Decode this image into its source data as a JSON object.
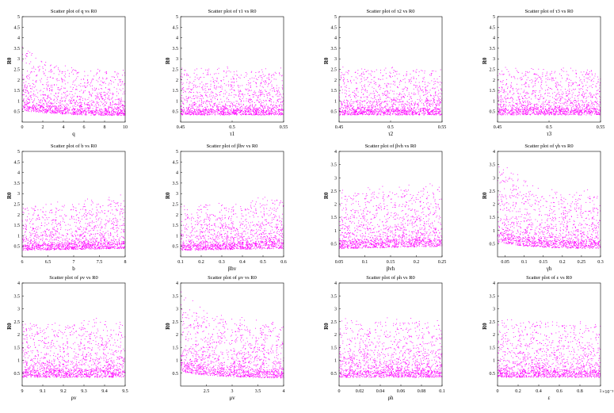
{
  "figure": {
    "point_color": "#ff00ff",
    "background": "#ffffff",
    "ylabel": "R0",
    "ylabel_sub": "0"
  },
  "chart_data": [
    {
      "type": "scatter",
      "title": "Scatter plot of q vs R0",
      "xlabel": "q",
      "xlim": [
        0,
        10
      ],
      "ylim": [
        0,
        5
      ],
      "xticks": [
        0,
        2,
        4,
        6,
        8,
        10
      ],
      "xtick_labels": [
        "0",
        "2",
        "4",
        "6",
        "8",
        "10"
      ],
      "yticks": [
        0.5,
        1,
        1.5,
        2,
        2.5,
        3,
        3.5,
        4,
        4.5,
        5
      ],
      "ytick_labels": [
        "0.5",
        "1",
        "1.5",
        "2",
        "2.5",
        "3",
        "3.5",
        "4",
        "4.5",
        "5"
      ],
      "trend": "decreasing",
      "n_points": 1500,
      "seed": 11
    },
    {
      "type": "scatter",
      "title": "Scatter plot of τ1 vs R0",
      "xlabel": "τ1",
      "xlim": [
        0.45,
        0.55
      ],
      "ylim": [
        0,
        5
      ],
      "xticks": [
        0.45,
        0.5,
        0.55
      ],
      "xtick_labels": [
        "0.45",
        "0.5",
        "0.55"
      ],
      "yticks": [
        0.5,
        1,
        1.5,
        2,
        2.5,
        3,
        3.5,
        4,
        4.5,
        5
      ],
      "ytick_labels": [
        "0.5",
        "1",
        "1.5",
        "2",
        "2.5",
        "3",
        "3.5",
        "4",
        "4.5",
        "5"
      ],
      "trend": "flat",
      "n_points": 1500,
      "seed": 12
    },
    {
      "type": "scatter",
      "title": "Scatter plot of τ2 vs R0",
      "xlabel": "τ2",
      "xlim": [
        0.45,
        0.55
      ],
      "ylim": [
        0,
        5
      ],
      "xticks": [
        0.45,
        0.5,
        0.55
      ],
      "xtick_labels": [
        "0.45",
        "0.5",
        "0.55"
      ],
      "yticks": [
        0.5,
        1,
        1.5,
        2,
        2.5,
        3,
        3.5,
        4,
        4.5,
        5
      ],
      "ytick_labels": [
        "0.5",
        "1",
        "1.5",
        "2",
        "2.5",
        "3",
        "3.5",
        "4",
        "4.5",
        "5"
      ],
      "trend": "flat",
      "n_points": 1500,
      "seed": 13
    },
    {
      "type": "scatter",
      "title": "Scatter plot of τ3 vs R0",
      "xlabel": "τ3",
      "xlim": [
        0.45,
        0.55
      ],
      "ylim": [
        0,
        5
      ],
      "xticks": [
        0.45,
        0.5,
        0.55
      ],
      "xtick_labels": [
        "0.45",
        "0.5",
        "0.55"
      ],
      "yticks": [
        0.5,
        1,
        1.5,
        2,
        2.5,
        3,
        3.5,
        4,
        4.5,
        5
      ],
      "ytick_labels": [
        "0.5",
        "1",
        "1.5",
        "2",
        "2.5",
        "3",
        "3.5",
        "4",
        "4.5",
        "5"
      ],
      "trend": "flat",
      "n_points": 1500,
      "seed": 14
    },
    {
      "type": "scatter",
      "title": "Scatter plot of b vs R0",
      "xlabel": "b",
      "xlim": [
        6,
        8
      ],
      "ylim": [
        0,
        5
      ],
      "xticks": [
        6,
        6.5,
        7,
        7.5,
        8
      ],
      "xtick_labels": [
        "6",
        "6.5",
        "7",
        "7.5",
        "8"
      ],
      "yticks": [
        0.5,
        1,
        1.5,
        2,
        2.5,
        3,
        3.5,
        4,
        4.5,
        5
      ],
      "ytick_labels": [
        "0.5",
        "1",
        "1.5",
        "2",
        "2.5",
        "3",
        "3.5",
        "4",
        "4.5",
        "5"
      ],
      "trend": "increasing",
      "n_points": 1500,
      "seed": 15
    },
    {
      "type": "scatter",
      "title": "Scatter plot of βhv vs R0",
      "xlabel": "βhv",
      "xlim": [
        0.1,
        0.6
      ],
      "ylim": [
        0,
        5
      ],
      "xticks": [
        0.1,
        0.2,
        0.3,
        0.4,
        0.5,
        0.6
      ],
      "xtick_labels": [
        "0.1",
        "0.2",
        "0.3",
        "0.4",
        "0.5",
        "0.6"
      ],
      "yticks": [
        0.5,
        1,
        1.5,
        2,
        2.5,
        3,
        3.5,
        4,
        4.5,
        5
      ],
      "ytick_labels": [
        "0.5",
        "1",
        "1.5",
        "2",
        "2.5",
        "3",
        "3.5",
        "4",
        "4.5",
        "5"
      ],
      "trend": "increasing",
      "n_points": 1500,
      "seed": 16
    },
    {
      "type": "scatter",
      "title": "Scatter plot of βvh vs R0",
      "xlabel": "βvh",
      "xlim": [
        0.05,
        0.25
      ],
      "ylim": [
        0,
        4
      ],
      "xticks": [
        0.05,
        0.1,
        0.15,
        0.2,
        0.25
      ],
      "xtick_labels": [
        "0.05",
        "0.1",
        "0.15",
        "0.2",
        "0.25"
      ],
      "yticks": [
        0.5,
        1,
        1.5,
        2,
        2.5,
        3,
        3.5,
        4
      ],
      "ytick_labels": [
        "0.5",
        "1",
        "1.5",
        "2",
        "2.5",
        "3",
        "3.5",
        "4"
      ],
      "trend": "increasing",
      "n_points": 1500,
      "seed": 17
    },
    {
      "type": "scatter",
      "title": "Scatter plot of γh vs R0",
      "xlabel": "γh",
      "xlim": [
        0.03,
        0.3
      ],
      "ylim": [
        0,
        4
      ],
      "xticks": [
        0.05,
        0.1,
        0.15,
        0.2,
        0.25,
        0.3
      ],
      "xtick_labels": [
        "0.05",
        "0.1",
        "0.15",
        "0.2",
        "0.25",
        "0.3"
      ],
      "yticks": [
        0.5,
        1,
        1.5,
        2,
        2.5,
        3,
        3.5,
        4
      ],
      "ytick_labels": [
        "0.5",
        "1",
        "1.5",
        "2",
        "2.5",
        "3",
        "3.5",
        "4"
      ],
      "trend": "decreasing",
      "n_points": 1500,
      "seed": 18
    },
    {
      "type": "scatter",
      "title": "Scatter plot of ρv vs R0",
      "xlabel": "ρv",
      "xlim": [
        9,
        9.5
      ],
      "ylim": [
        0,
        4
      ],
      "xticks": [
        9,
        9.1,
        9.2,
        9.3,
        9.4,
        9.5
      ],
      "xtick_labels": [
        "9",
        "9.1",
        "9.2",
        "9.3",
        "9.4",
        "9.5"
      ],
      "yticks": [
        0.5,
        1,
        1.5,
        2,
        2.5,
        3,
        3.5,
        4
      ],
      "ytick_labels": [
        "0.5",
        "1",
        "1.5",
        "2",
        "2.5",
        "3",
        "3.5",
        "4"
      ],
      "trend": "flat",
      "n_points": 1500,
      "seed": 19
    },
    {
      "type": "scatter",
      "title": "Scatter plot of μv vs R0",
      "xlabel": "μv",
      "xlim": [
        2,
        4
      ],
      "ylim": [
        0,
        4
      ],
      "xticks": [
        2.5,
        3,
        3.5,
        4
      ],
      "xtick_labels": [
        "2.5",
        "3",
        "3.5",
        "4"
      ],
      "yticks": [
        0.5,
        1,
        1.5,
        2,
        2.5,
        3,
        3.5,
        4
      ],
      "ytick_labels": [
        "0.5",
        "1",
        "1.5",
        "2",
        "2.5",
        "3",
        "3.5",
        "4"
      ],
      "trend": "decreasing",
      "n_points": 1500,
      "seed": 20
    },
    {
      "type": "scatter",
      "title": "Scatter plot of ρh vs R0",
      "xlabel": "ρh",
      "xlim": [
        0,
        0.1
      ],
      "ylim": [
        0,
        4
      ],
      "xticks": [
        0,
        0.02,
        0.04,
        0.06,
        0.08,
        0.1
      ],
      "xtick_labels": [
        "0",
        "0.02",
        "0.04",
        "0.06",
        "0.08",
        "0.1"
      ],
      "yticks": [
        0.5,
        1,
        1.5,
        2,
        2.5,
        3,
        3.5,
        4
      ],
      "ytick_labels": [
        "0.5",
        "1",
        "1.5",
        "2",
        "2.5",
        "3",
        "3.5",
        "4"
      ],
      "trend": "flat",
      "n_points": 1500,
      "seed": 21
    },
    {
      "type": "scatter",
      "title": "Scatter plot of ε vs R0",
      "xlabel": "ε",
      "xlim": [
        0,
        1
      ],
      "ylim": [
        0,
        4
      ],
      "xticks": [
        0,
        0.2,
        0.4,
        0.6,
        0.8,
        1
      ],
      "xtick_labels": [
        "0",
        "0.2",
        "0.4",
        "0.6",
        "0.8",
        "1"
      ],
      "yticks": [
        0.5,
        1,
        1.5,
        2,
        2.5,
        3,
        3.5,
        4
      ],
      "ytick_labels": [
        "0.5",
        "1",
        "1.5",
        "2",
        "2.5",
        "3",
        "3.5",
        "4"
      ],
      "x_multiplier": "×10⁻³",
      "trend": "flat",
      "n_points": 1500,
      "seed": 22
    }
  ]
}
